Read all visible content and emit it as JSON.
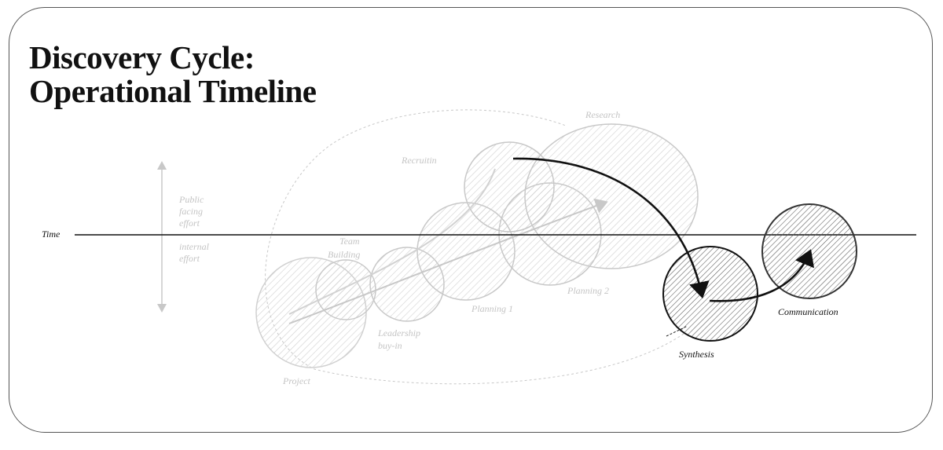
{
  "title_line1": "Discovery Cycle:",
  "title_line2": "Operational Timeline",
  "axis": {
    "time_label": "Time"
  },
  "effort": {
    "public_lines": [
      "Public",
      "facing",
      "effort"
    ],
    "internal_lines": [
      "internal",
      "effort"
    ]
  },
  "phases": {
    "project": "Project",
    "team_building_line1": "Team",
    "team_building_line2": "Building",
    "leadership_line1": "Leadership",
    "leadership_line2": "buy-in",
    "recruiting": "Recruitin",
    "planning1": "Planning 1",
    "planning2": "Planning 2",
    "research": "Research",
    "synthesis": "Synthesis",
    "communication": "Communication"
  },
  "colors": {
    "dark": "#111111",
    "faint": "#c8c8c8",
    "frame": "#555555"
  }
}
